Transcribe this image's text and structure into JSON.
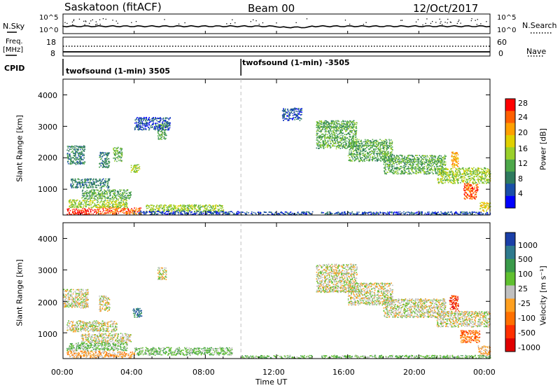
{
  "header": {
    "station": "Saskatoon (fitACF)",
    "beam": "Beam 00",
    "date": "12/Oct/2017"
  },
  "top_panels": {
    "nsky_label": "N.Sky",
    "nsky_ticks": [
      "10^5",
      "10^0"
    ],
    "nsearch_ticks": [
      "10^5",
      "10^0"
    ],
    "nsearch_label": "N.Search",
    "freq_label_1": "Freq.",
    "freq_label_2": "[MHz]",
    "freq_ticks": [
      "18",
      "8"
    ],
    "nave_ticks": [
      "60",
      "0"
    ],
    "nave_label": "Nave",
    "cpid_label": "CPID",
    "cpid_segments": [
      {
        "name": "twofsound (1-min) 3505",
        "start_hour": 0
      },
      {
        "name": "twofsound (1-min) -3505",
        "start_hour": 10
      }
    ]
  },
  "chart_data": [
    {
      "type": "heatmap",
      "panel": "power",
      "ylabel": "Slant Range [km]",
      "ylim": [
        180,
        4500
      ],
      "yticks": [
        "4000",
        "3000",
        "2000",
        "1000"
      ],
      "xlim_hours": [
        0,
        24
      ],
      "colorbar_label": "Power [dB]",
      "colorbar_ticks": [
        "28",
        "24",
        "20",
        "16",
        "12",
        "8",
        "4"
      ],
      "colorbar_colors": [
        "#ff0000",
        "#ff6000",
        "#ffa000",
        "#e0d000",
        "#9ad02a",
        "#4da84a",
        "#2e7a5e",
        "#1a4fa8",
        "#0000ff"
      ],
      "scatter_regions": [
        {
          "t": [
            0.2,
            1.8
          ],
          "r": [
            200,
            400
          ],
          "level": 0
        },
        {
          "t": [
            1.8,
            3.2
          ],
          "r": [
            220,
            460
          ],
          "level": 1
        },
        {
          "t": [
            3.2,
            4.4
          ],
          "r": [
            220,
            420
          ],
          "level": 1
        },
        {
          "t": [
            0.3,
            3.6
          ],
          "r": [
            430,
            680
          ],
          "level": 4
        },
        {
          "t": [
            1.0,
            3.8
          ],
          "r": [
            700,
            1000
          ],
          "level": 5
        },
        {
          "t": [
            0.4,
            2.6
          ],
          "r": [
            1050,
            1350
          ],
          "level": 6
        },
        {
          "t": [
            0.2,
            1.2
          ],
          "r": [
            1800,
            2400
          ],
          "level": 6
        },
        {
          "t": [
            2.0,
            2.6
          ],
          "r": [
            1700,
            2200
          ],
          "level": 6
        },
        {
          "t": [
            2.8,
            3.3
          ],
          "r": [
            1900,
            2350
          ],
          "level": 5
        },
        {
          "t": [
            3.8,
            4.3
          ],
          "r": [
            1550,
            1800
          ],
          "level": 4
        },
        {
          "t": [
            5.3,
            5.8
          ],
          "r": [
            2600,
            3100
          ],
          "level": 5
        },
        {
          "t": [
            4.0,
            6.0
          ],
          "r": [
            2900,
            3300
          ],
          "level": 7
        },
        {
          "t": [
            4.6,
            9.0
          ],
          "r": [
            300,
            520
          ],
          "level": 4
        },
        {
          "t": [
            4.2,
            10.0
          ],
          "r": [
            200,
            320
          ],
          "level": 7
        },
        {
          "t": [
            10.0,
            14.0
          ],
          "r": [
            200,
            300
          ],
          "level": 7
        },
        {
          "t": [
            12.3,
            13.4
          ],
          "r": [
            3200,
            3600
          ],
          "level": 7
        },
        {
          "t": [
            14.2,
            16.5
          ],
          "r": [
            2300,
            3200
          ],
          "level": 5
        },
        {
          "t": [
            16.0,
            18.5
          ],
          "r": [
            1900,
            2600
          ],
          "level": 5
        },
        {
          "t": [
            18.0,
            21.5
          ],
          "r": [
            1500,
            2100
          ],
          "level": 5
        },
        {
          "t": [
            21.0,
            24.0
          ],
          "r": [
            1200,
            1700
          ],
          "level": 4
        },
        {
          "t": [
            21.8,
            22.2
          ],
          "r": [
            1700,
            2200
          ],
          "level": 2
        },
        {
          "t": [
            22.5,
            23.3
          ],
          "r": [
            700,
            1200
          ],
          "level": 1
        },
        {
          "t": [
            23.4,
            24.0
          ],
          "r": [
            300,
            600
          ],
          "level": 3
        },
        {
          "t": [
            14.5,
            24.0
          ],
          "r": [
            200,
            300
          ],
          "level": 7
        }
      ]
    },
    {
      "type": "heatmap",
      "panel": "velocity",
      "ylabel": "Slant Range [km]",
      "ylim": [
        180,
        4500
      ],
      "yticks": [
        "4000",
        "3000",
        "2000",
        "1000"
      ],
      "xlim_hours": [
        0,
        24
      ],
      "xticks": [
        "00:00",
        "04:00",
        "08:00",
        "12:00",
        "16:00",
        "20:00",
        "00:00"
      ],
      "xlabel": "Time UT",
      "colorbar_label": "Velocity [m s⁻¹]",
      "colorbar_ticks": [
        "1000",
        "500",
        "100",
        "25",
        "-25",
        "-100",
        "-500",
        "-1000"
      ],
      "colorbar_colors": [
        "#1a3fa8",
        "#2e7a8e",
        "#3a9a4a",
        "#60c030",
        "#c0c0c0",
        "#ffa020",
        "#ff7000",
        "#ff3000",
        "#e00000"
      ],
      "scatter_regions": [
        {
          "t": [
            0.2,
            2.8
          ],
          "r": [
            220,
            450
          ],
          "level": 5
        },
        {
          "t": [
            2.8,
            4.0
          ],
          "r": [
            220,
            420
          ],
          "level": 5
        },
        {
          "t": [
            0.2,
            3.6
          ],
          "r": [
            450,
            700
          ],
          "level": 3
        },
        {
          "t": [
            4.0,
            9.5
          ],
          "r": [
            300,
            550
          ],
          "level": 3
        },
        {
          "t": [
            1.0,
            3.8
          ],
          "r": [
            700,
            1000
          ],
          "level": 4
        },
        {
          "t": [
            0.2,
            3.0
          ],
          "r": [
            1050,
            1400
          ],
          "level": 4
        },
        {
          "t": [
            0.0,
            1.4
          ],
          "r": [
            1800,
            2400
          ],
          "level": 4
        },
        {
          "t": [
            2.0,
            2.6
          ],
          "r": [
            1700,
            2200
          ],
          "level": 4
        },
        {
          "t": [
            3.9,
            4.4
          ],
          "r": [
            1500,
            1800
          ],
          "level": 1
        },
        {
          "t": [
            5.3,
            5.8
          ],
          "r": [
            2700,
            3100
          ],
          "level": 4
        },
        {
          "t": [
            10.0,
            14.0
          ],
          "r": [
            200,
            300
          ],
          "level": 3
        },
        {
          "t": [
            14.2,
            16.5
          ],
          "r": [
            2300,
            3200
          ],
          "level": 4
        },
        {
          "t": [
            16.0,
            18.5
          ],
          "r": [
            1900,
            2600
          ],
          "level": 4
        },
        {
          "t": [
            18.0,
            21.5
          ],
          "r": [
            1500,
            2100
          ],
          "level": 4
        },
        {
          "t": [
            21.0,
            24.0
          ],
          "r": [
            1200,
            1700
          ],
          "level": 4
        },
        {
          "t": [
            21.7,
            22.2
          ],
          "r": [
            1700,
            2200
          ],
          "level": 7
        },
        {
          "t": [
            22.3,
            23.4
          ],
          "r": [
            700,
            1100
          ],
          "level": 6
        },
        {
          "t": [
            23.3,
            24.0
          ],
          "r": [
            300,
            600
          ],
          "level": 5
        },
        {
          "t": [
            14.5,
            24.0
          ],
          "r": [
            200,
            300
          ],
          "level": 3
        }
      ]
    }
  ]
}
